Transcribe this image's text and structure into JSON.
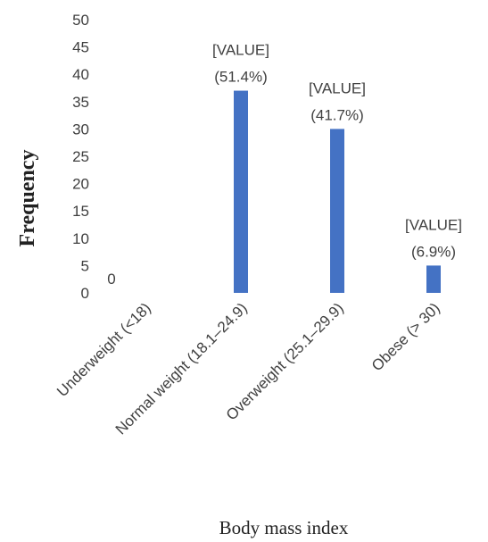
{
  "chart_data": {
    "type": "bar",
    "categories": [
      "Underweight (<18)",
      "Normal weight (18.1–24.9)",
      "Overweight (25.1–29.9)",
      "Obese (> 30)"
    ],
    "values": [
      0,
      37,
      30,
      5
    ],
    "data_labels": [
      [
        "0"
      ],
      [
        "[VALUE]",
        "(51.4%)"
      ],
      [
        "[VALUE]",
        "(41.7%)"
      ],
      [
        "[VALUE]",
        "(6.9%)"
      ]
    ],
    "yticks": [
      "0",
      "5",
      "10",
      "15",
      "20",
      "25",
      "30",
      "35",
      "40",
      "45",
      "50"
    ],
    "ylim": [
      0,
      50
    ],
    "xlabel": "Body mass index",
    "ylabel": "Frequency",
    "grid": false,
    "bar_color": "#4472C4"
  }
}
